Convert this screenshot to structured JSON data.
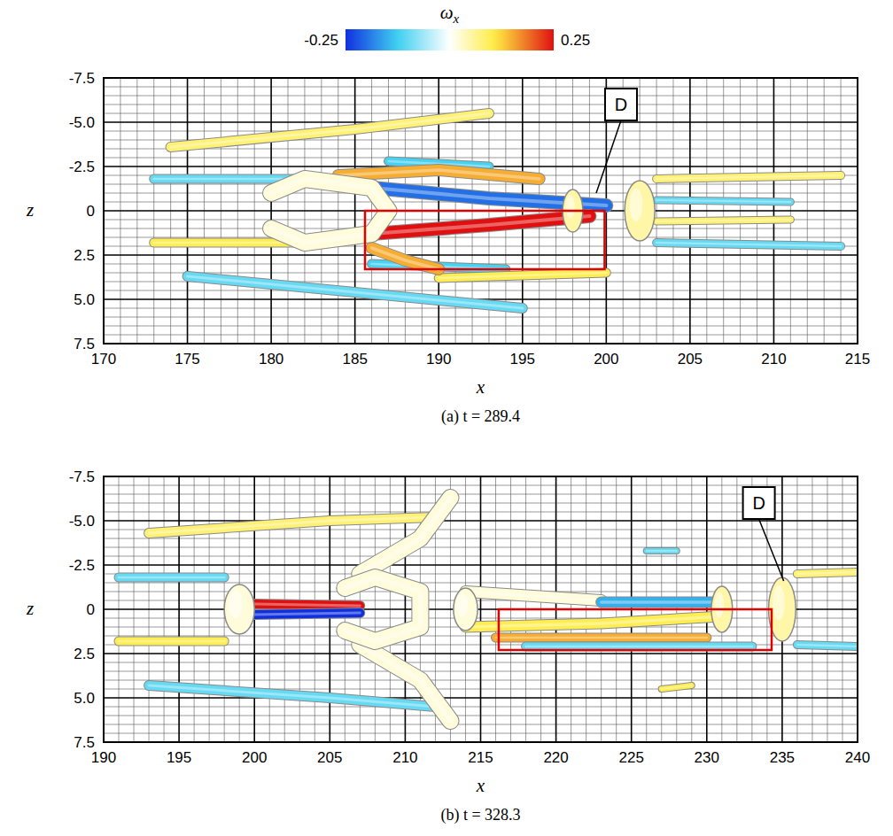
{
  "colorbar": {
    "title": "ωx",
    "range": [
      -0.25,
      0.25
    ],
    "ticks": [
      -0.25,
      0.25
    ]
  },
  "chart_data": [
    {
      "type": "isosurface",
      "caption": "(a) t = 289.4",
      "x_label": "x",
      "y_label": "z",
      "xlim": [
        170,
        215
      ],
      "ylim": [
        7.5,
        -7.5
      ],
      "xticks": [
        170,
        175,
        180,
        185,
        190,
        195,
        200,
        205,
        210,
        215
      ],
      "yticks": [
        -7.5,
        {
          "value": -5,
          "label": "-5.0"
        },
        -2.5,
        0,
        2.5,
        {
          "value": 5,
          "label": "5.0"
        },
        7.5
      ],
      "grid": true,
      "highlight_box": {
        "x": [
          185.6,
          199.9
        ],
        "z": [
          0,
          3.3
        ]
      },
      "annotations": [
        {
          "text": "D",
          "x": 199.4,
          "z": -1.0
        }
      ],
      "structures": [
        {
          "omega_x": 0.08,
          "thickness": 0.5,
          "points": [
            [
              174,
              -3.6
            ],
            [
              185,
              -4.6
            ],
            [
              193,
              -5.5
            ]
          ]
        },
        {
          "omega_x": -0.1,
          "thickness": 0.5,
          "points": [
            [
              175,
              3.7
            ],
            [
              185,
              4.6
            ],
            [
              195,
              5.5
            ]
          ]
        },
        {
          "omega_x": -0.1,
          "thickness": 0.45,
          "points": [
            [
              173,
              -1.8
            ],
            [
              183,
              -1.8
            ]
          ]
        },
        {
          "omega_x": 0.1,
          "thickness": 0.45,
          "points": [
            [
              173,
              1.8
            ],
            [
              183,
              1.8
            ]
          ]
        },
        {
          "omega_x": -0.12,
          "thickness": 0.45,
          "points": [
            [
              187,
              -2.8
            ],
            [
              193,
              -2.5
            ]
          ]
        },
        {
          "omega_x": -0.12,
          "thickness": 0.45,
          "points": [
            [
              186,
              3.0
            ],
            [
              194,
              3.3
            ]
          ]
        },
        {
          "omega_x": 0.1,
          "thickness": 0.45,
          "points": [
            [
              190,
              3.8
            ],
            [
              200,
              3.5
            ]
          ]
        },
        {
          "omega_x": 0.15,
          "thickness": 0.6,
          "points": [
            [
              184,
              -2.0
            ],
            [
              190,
              -2.3
            ],
            [
              196,
              -1.8
            ]
          ]
        },
        {
          "omega_x": 0.15,
          "thickness": 0.6,
          "points": [
            [
              186,
              2.1
            ],
            [
              188,
              2.8
            ],
            [
              190,
              3.3
            ]
          ]
        },
        {
          "omega_x": -0.2,
          "thickness": 0.7,
          "points": [
            [
              186,
              -1.3
            ],
            [
              193,
              -0.7
            ],
            [
              200,
              -0.3
            ]
          ]
        },
        {
          "omega_x": 0.25,
          "thickness": 0.7,
          "points": [
            [
              186,
              1.3
            ],
            [
              193,
              0.8
            ],
            [
              199,
              0.3
            ]
          ]
        },
        {
          "omega_x": 0.02,
          "thickness": 0.9,
          "points": [
            [
              180,
              -1.0
            ],
            [
              182,
              -1.8
            ],
            [
              186,
              -1.3
            ],
            [
              187,
              0
            ],
            [
              186,
              1.3
            ],
            [
              182,
              1.8
            ],
            [
              180,
              1.0
            ]
          ]
        },
        {
          "omega_x": 0.08,
          "thickness": 0.4,
          "points": [
            [
              203,
              -1.8
            ],
            [
              214,
              -2.0
            ]
          ]
        },
        {
          "omega_x": -0.1,
          "thickness": 0.4,
          "points": [
            [
              203,
              1.8
            ],
            [
              214,
              2.0
            ]
          ]
        },
        {
          "omega_x": 0.08,
          "thickness": 0.35,
          "points": [
            [
              203,
              0.6
            ],
            [
              211,
              0.5
            ]
          ]
        },
        {
          "omega_x": -0.1,
          "thickness": 0.35,
          "points": [
            [
              203,
              -0.6
            ],
            [
              211,
              -0.5
            ]
          ]
        },
        {
          "omega_x": 0.05,
          "center": [
            198,
            0
          ],
          "radius": [
            0.6,
            1.2
          ]
        },
        {
          "omega_x": 0.05,
          "center": [
            202,
            0
          ],
          "radius": [
            0.9,
            1.7
          ]
        }
      ]
    },
    {
      "type": "isosurface",
      "caption": "(b) t = 328.3",
      "x_label": "x",
      "y_label": "z",
      "xlim": [
        190,
        240
      ],
      "ylim": [
        7.5,
        -7.5
      ],
      "xticks": [
        190,
        195,
        200,
        205,
        210,
        215,
        220,
        225,
        230,
        235,
        240
      ],
      "yticks": [
        -7.5,
        {
          "value": -5,
          "label": "-5.0"
        },
        -2.5,
        0,
        2.5,
        {
          "value": 5,
          "label": "5.0"
        },
        7.5
      ],
      "grid": true,
      "highlight_box": {
        "x": [
          216.2,
          234.3
        ],
        "z": [
          0,
          2.3
        ]
      },
      "annotations": [
        {
          "text": "D",
          "x": 235.1,
          "z": -1.6
        }
      ],
      "structures": [
        {
          "omega_x": 0.08,
          "thickness": 0.5,
          "points": [
            [
              193,
              -4.3
            ],
            [
              205,
              -5.0
            ],
            [
              212,
              -5.2
            ]
          ]
        },
        {
          "omega_x": -0.1,
          "thickness": 0.5,
          "points": [
            [
              193,
              4.3
            ],
            [
              205,
              5.0
            ],
            [
              212,
              5.5
            ]
          ]
        },
        {
          "omega_x": -0.1,
          "thickness": 0.45,
          "points": [
            [
              191,
              -1.8
            ],
            [
              198,
              -1.8
            ]
          ]
        },
        {
          "omega_x": 0.1,
          "thickness": 0.45,
          "points": [
            [
              191,
              1.8
            ],
            [
              198,
              1.8
            ]
          ]
        },
        {
          "omega_x": 0.25,
          "thickness": 0.5,
          "points": [
            [
              200,
              -0.3
            ],
            [
              207,
              -0.2
            ]
          ]
        },
        {
          "omega_x": -0.25,
          "thickness": 0.5,
          "points": [
            [
              200,
              0.3
            ],
            [
              207,
              0.2
            ]
          ]
        },
        {
          "omega_x": 0.02,
          "thickness": 0.9,
          "points": [
            [
              207,
              -2.0
            ],
            [
              211,
              -4.0
            ],
            [
              213,
              -6.3
            ]
          ]
        },
        {
          "omega_x": 0.02,
          "thickness": 0.9,
          "points": [
            [
              207,
              2.0
            ],
            [
              211,
              4.0
            ],
            [
              213,
              6.3
            ]
          ]
        },
        {
          "omega_x": 0.02,
          "thickness": 0.9,
          "points": [
            [
              206,
              -1.2
            ],
            [
              208,
              -1.8
            ],
            [
              211,
              -1.0
            ],
            [
              211,
              1.0
            ],
            [
              208,
              1.8
            ],
            [
              206,
              1.2
            ]
          ]
        },
        {
          "omega_x": 0.02,
          "thickness": 0.6,
          "points": [
            [
              214,
              -1.0
            ],
            [
              223,
              -0.5
            ]
          ]
        },
        {
          "omega_x": -0.15,
          "thickness": 0.55,
          "points": [
            [
              223,
              -0.4
            ],
            [
              231,
              -0.4
            ]
          ]
        },
        {
          "omega_x": 0.1,
          "thickness": 0.55,
          "points": [
            [
              214,
              1.0
            ],
            [
              223,
              0.8
            ],
            [
              231,
              0.4
            ]
          ]
        },
        {
          "omega_x": 0.15,
          "thickness": 0.45,
          "points": [
            [
              216,
              1.6
            ],
            [
              230,
              1.6
            ]
          ]
        },
        {
          "omega_x": -0.1,
          "thickness": 0.45,
          "points": [
            [
              218,
              2.1
            ],
            [
              233,
              2.1
            ]
          ]
        },
        {
          "omega_x": -0.1,
          "thickness": 0.3,
          "points": [
            [
              226,
              -3.3
            ],
            [
              228,
              -3.3
            ]
          ]
        },
        {
          "omega_x": 0.1,
          "thickness": 0.3,
          "points": [
            [
              227,
              4.5
            ],
            [
              229,
              4.3
            ]
          ]
        },
        {
          "omega_x": 0.08,
          "thickness": 0.4,
          "points": [
            [
              236,
              -2.0
            ],
            [
              240,
              -2.1
            ]
          ]
        },
        {
          "omega_x": -0.1,
          "thickness": 0.4,
          "points": [
            [
              236,
              2.0
            ],
            [
              240,
              2.1
            ]
          ]
        },
        {
          "omega_x": 0.02,
          "center": [
            199,
            0
          ],
          "radius": [
            1.0,
            1.4
          ]
        },
        {
          "omega_x": 0.02,
          "center": [
            214,
            0
          ],
          "radius": [
            0.8,
            1.2
          ]
        },
        {
          "omega_x": 0.05,
          "center": [
            231,
            0
          ],
          "radius": [
            0.7,
            1.3
          ]
        },
        {
          "omega_x": 0.05,
          "center": [
            235,
            0
          ],
          "radius": [
            0.9,
            1.8
          ]
        }
      ]
    }
  ]
}
